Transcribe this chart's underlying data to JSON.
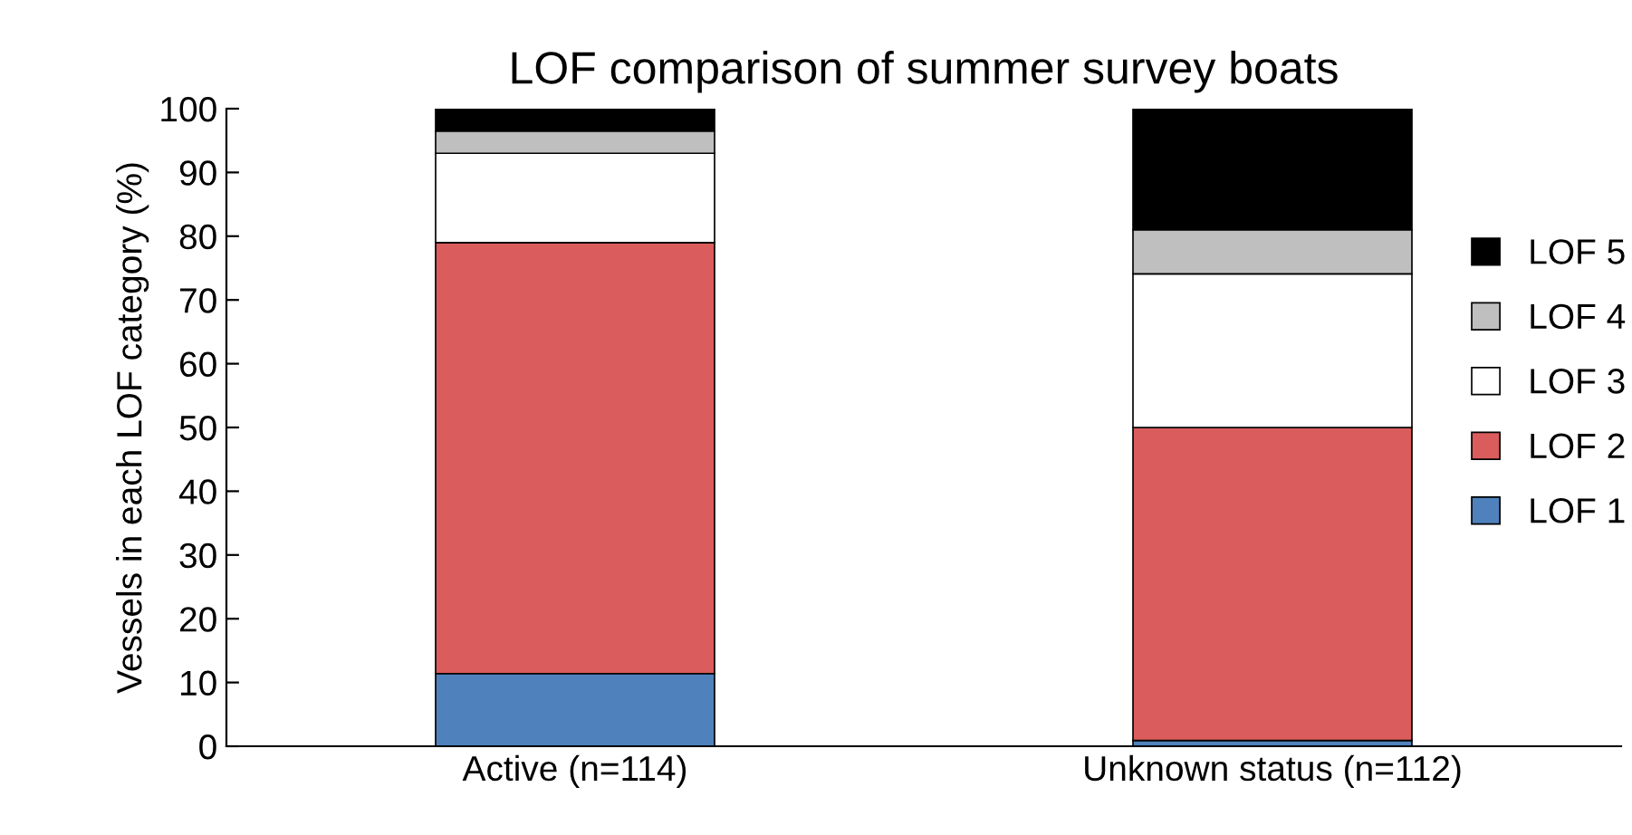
{
  "chart_data": {
    "type": "bar",
    "title": "LOF comparison of summer survey boats",
    "ylabel": "Vessels in each LOF category (%)",
    "categories": [
      "Active (n=114)",
      "Unknown status (n=112)"
    ],
    "stacked": true,
    "series": [
      {
        "name": "LOF 1",
        "color": "#4f81bd",
        "values": [
          11.4,
          0.9
        ]
      },
      {
        "name": "LOF 2",
        "color": "#db5c5c",
        "values": [
          67.6,
          49.1
        ]
      },
      {
        "name": "LOF 3",
        "color": "#ffffff",
        "values": [
          14.0,
          24.1
        ]
      },
      {
        "name": "LOF 4",
        "color": "#bfbfbf",
        "values": [
          3.5,
          6.9
        ]
      },
      {
        "name": "LOF 5",
        "color": "#000000",
        "values": [
          3.5,
          19.0
        ]
      }
    ],
    "ylim": [
      0,
      100
    ],
    "yticks": [
      0,
      10,
      20,
      30,
      40,
      50,
      60,
      70,
      80,
      90,
      100
    ],
    "grid": false,
    "legend": "right"
  }
}
